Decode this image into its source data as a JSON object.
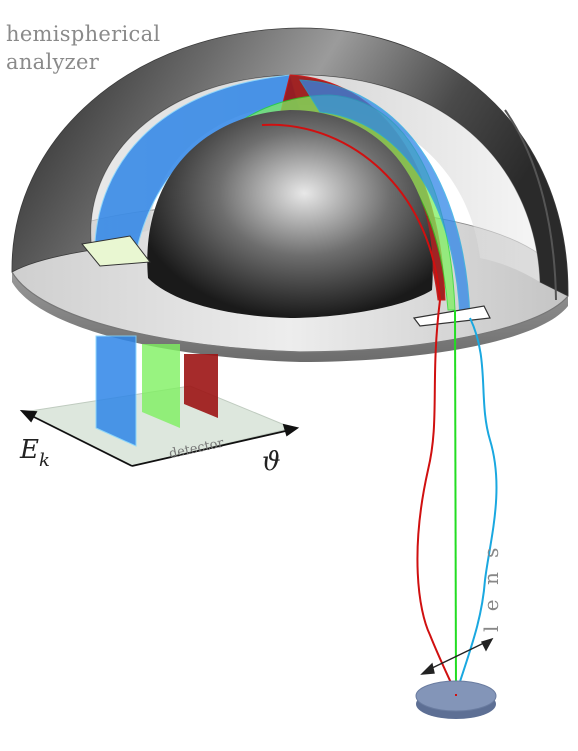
{
  "title": {
    "line1": "hemispherical",
    "line2": "analyzer"
  },
  "labels": {
    "energy_axis": "E",
    "energy_subscript": "k",
    "angle_axis": "ϑ",
    "detector": "detector",
    "lens": "l e n s"
  },
  "colors": {
    "red": "#d01010",
    "green": "#22dd22",
    "blue": "#1aa8e0",
    "blue_fill": "#2f86e8",
    "green_fill": "#7ef060",
    "red_fill": "#9c1414",
    "shell_dark": "#3a3a3a",
    "shell_light": "#d8d8d8",
    "sample": "#8395b8"
  }
}
